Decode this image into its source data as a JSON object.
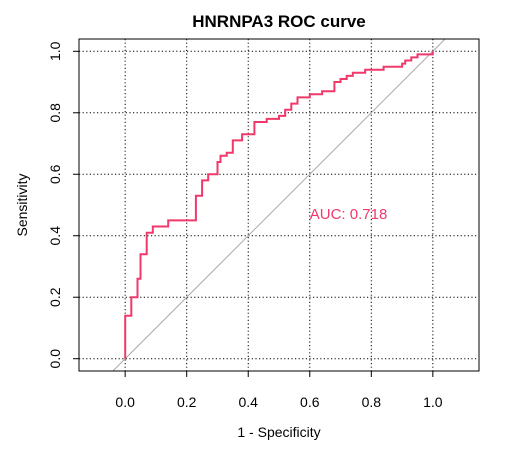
{
  "chart_data": {
    "type": "line",
    "title": "HNRNPA3 ROC curve",
    "xlabel": "1 - Specificity",
    "ylabel": "Sensitivity",
    "xlim": [
      -0.15,
      1.15
    ],
    "ylim": [
      -0.04,
      1.04
    ],
    "x_ticks": [
      0.0,
      0.2,
      0.4,
      0.6,
      0.8,
      1.0
    ],
    "y_ticks": [
      0.0,
      0.2,
      0.4,
      0.6,
      0.8,
      1.0
    ],
    "x_tick_labels": [
      "0.0",
      "0.2",
      "0.4",
      "0.6",
      "0.8",
      "1.0"
    ],
    "y_tick_labels": [
      "0.0",
      "0.2",
      "0.4",
      "0.6",
      "0.8",
      "1.0"
    ],
    "grid": true,
    "reference_line": {
      "from": [
        0,
        0
      ],
      "to": [
        1,
        1
      ],
      "color": "#aaaaaa"
    },
    "annotation": {
      "text": "AUC: 0.718",
      "x": 0.6,
      "y": 0.47
    },
    "series": [
      {
        "color": "#f0386b",
        "x": [
          0.0,
          0.0,
          0.02,
          0.02,
          0.04,
          0.04,
          0.05,
          0.05,
          0.07,
          0.07,
          0.09,
          0.09,
          0.14,
          0.14,
          0.23,
          0.23,
          0.25,
          0.25,
          0.27,
          0.27,
          0.3,
          0.3,
          0.31,
          0.31,
          0.33,
          0.33,
          0.35,
          0.35,
          0.38,
          0.38,
          0.42,
          0.42,
          0.46,
          0.46,
          0.5,
          0.5,
          0.52,
          0.52,
          0.54,
          0.54,
          0.56,
          0.56,
          0.6,
          0.6,
          0.64,
          0.64,
          0.68,
          0.68,
          0.7,
          0.7,
          0.72,
          0.72,
          0.74,
          0.74,
          0.78,
          0.78,
          0.84,
          0.84,
          0.9,
          0.9,
          0.91,
          0.91,
          0.93,
          0.93,
          0.95,
          0.95,
          0.96,
          0.96,
          1.0,
          1.0
        ],
        "y": [
          0.0,
          0.14,
          0.14,
          0.2,
          0.2,
          0.26,
          0.26,
          0.34,
          0.34,
          0.41,
          0.41,
          0.43,
          0.43,
          0.45,
          0.45,
          0.53,
          0.53,
          0.58,
          0.58,
          0.6,
          0.6,
          0.64,
          0.64,
          0.66,
          0.66,
          0.67,
          0.67,
          0.71,
          0.71,
          0.73,
          0.73,
          0.77,
          0.77,
          0.78,
          0.78,
          0.79,
          0.79,
          0.81,
          0.81,
          0.83,
          0.83,
          0.85,
          0.85,
          0.86,
          0.86,
          0.87,
          0.87,
          0.9,
          0.9,
          0.91,
          0.91,
          0.92,
          0.92,
          0.93,
          0.93,
          0.94,
          0.94,
          0.95,
          0.95,
          0.96,
          0.96,
          0.97,
          0.97,
          0.98,
          0.98,
          0.99,
          0.99,
          0.99,
          0.99,
          1.0
        ]
      }
    ]
  }
}
